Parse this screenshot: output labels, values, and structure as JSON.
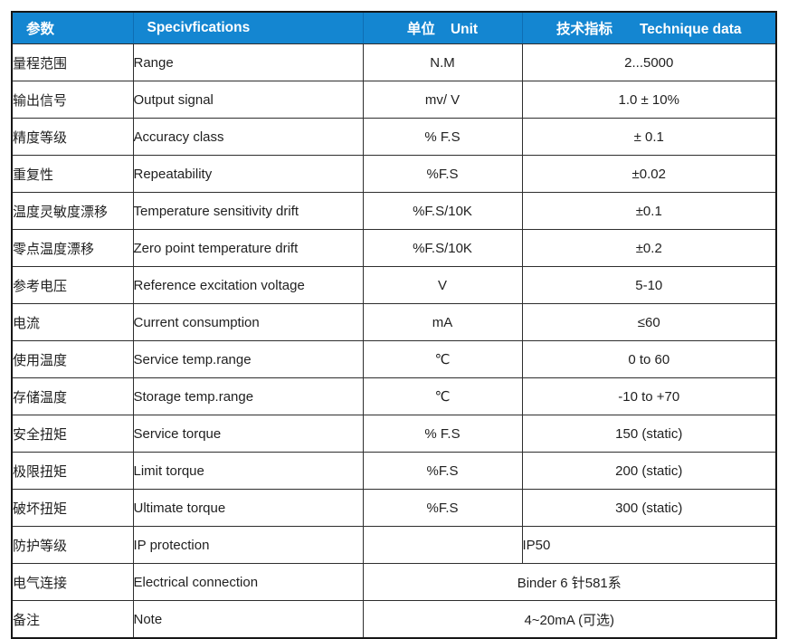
{
  "table": {
    "colors": {
      "header_bg": "#1486d1",
      "header_separator": "#0f6eb3",
      "header_text": "#ffffff",
      "border_outer": "#161616",
      "border_inner": "#2e2e2e",
      "body_text": "#1f1f1f"
    },
    "header": {
      "param": "参数",
      "spec": "Specivfications",
      "unit_cn": "单位",
      "unit_en": "Unit",
      "tech_cn": "技术指标",
      "tech_en": "Technique data"
    },
    "rows": [
      {
        "param": "量程范围",
        "spec": "Range",
        "unit": "N.M",
        "value": "2...5000"
      },
      {
        "param": "输出信号",
        "spec": "Output signal",
        "unit": "mv/ V",
        "value": "1.0 ± 10%"
      },
      {
        "param": "精度等级",
        "spec": "Accuracy class",
        "unit": "% F.S",
        "value": "± 0.1"
      },
      {
        "param": "重复性",
        "spec": "Repeatability",
        "unit": "%F.S",
        "value": "±0.02"
      },
      {
        "param": "温度灵敏度漂移",
        "spec": "Temperature sensitivity drift",
        "unit": "%F.S/10K",
        "value": "±0.1"
      },
      {
        "param": "零点温度漂移",
        "spec": "Zero point temperature drift",
        "unit": "%F.S/10K",
        "value": "±0.2"
      },
      {
        "param": "参考电压",
        "spec": "Reference excitation voltage",
        "unit": "V",
        "value": "5-10"
      },
      {
        "param": "电流",
        "spec": "Current consumption",
        "unit": "mA",
        "value": "≤60"
      },
      {
        "param": "使用温度",
        "spec": "Service temp.range",
        "unit": "℃",
        "value": "0 to 60"
      },
      {
        "param": "存储温度",
        "spec": "Storage temp.range",
        "unit": "℃",
        "value": "-10 to +70"
      },
      {
        "param": "安全扭矩",
        "spec": "Service torque",
        "unit": "% F.S",
        "value": "150 (static)"
      },
      {
        "param": "极限扭矩",
        "spec": "Limit torque",
        "unit": "%F.S",
        "value": "200 (static)"
      },
      {
        "param": "破坏扭矩",
        "spec": "Ultimate torque",
        "unit": "%F.S",
        "value": "300 (static)"
      },
      {
        "param": "防护等级",
        "spec": "IP protection",
        "unit": "",
        "value": "IP50",
        "value_align": "left"
      },
      {
        "param": "电气连接",
        "spec": "Electrical connection",
        "value": "Binder 6 针581系",
        "merged": true
      },
      {
        "param": "备注",
        "spec": "Note",
        "value": "4~20mA (可选)",
        "merged": true
      }
    ]
  }
}
